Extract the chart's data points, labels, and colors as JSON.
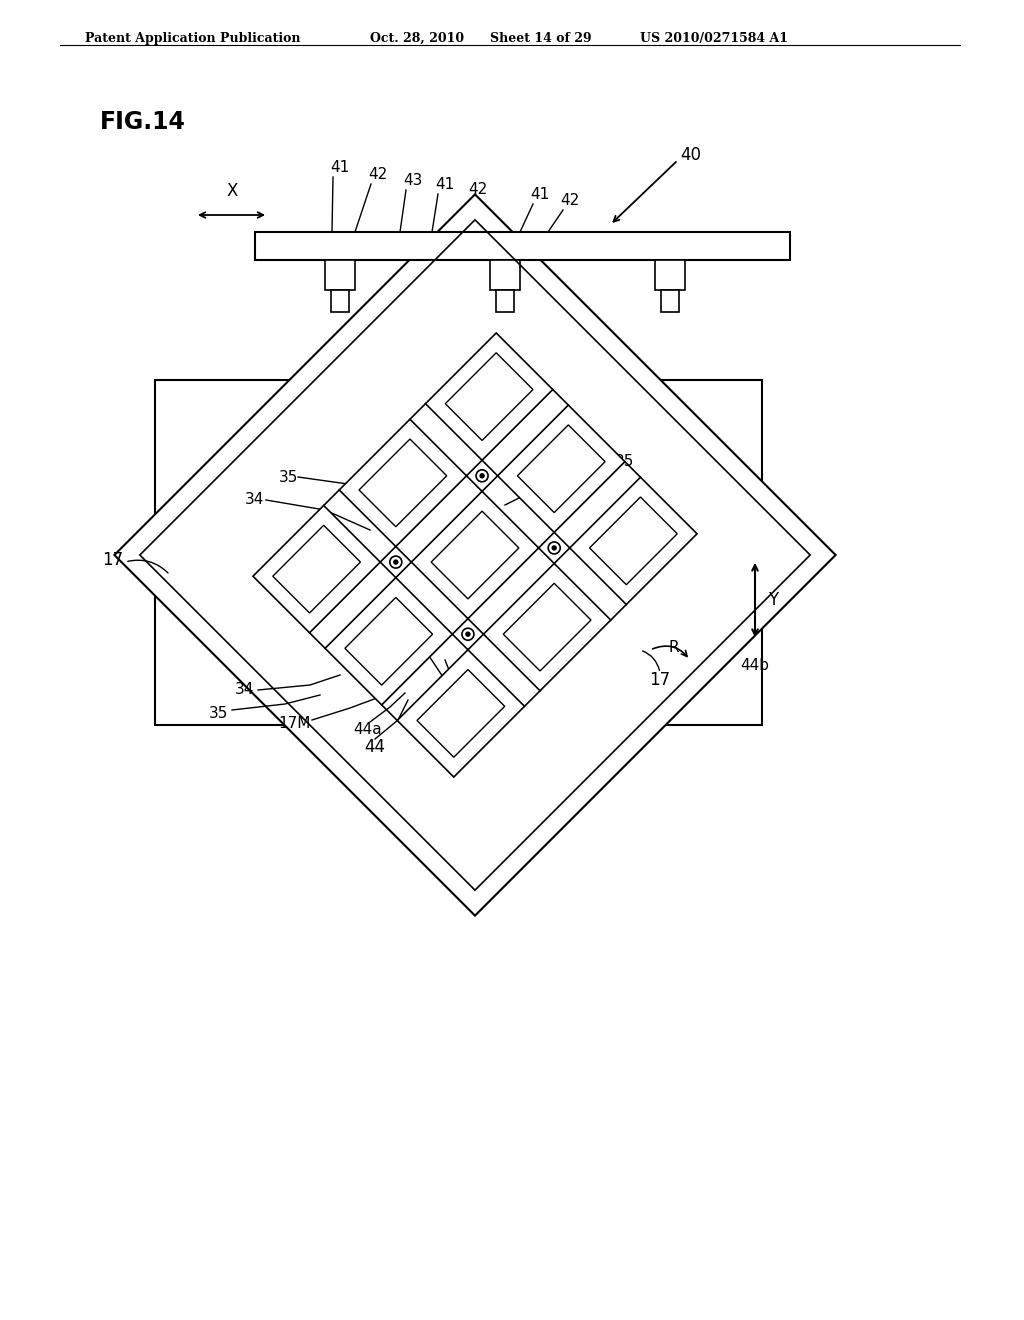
{
  "bg_color": "#ffffff",
  "line_color": "#000000",
  "header_text": "Patent Application Publication",
  "header_date": "Oct. 28, 2010",
  "header_sheet": "Sheet 14 of 29",
  "header_patent": "US 2010/0271584 A1",
  "fig_label": "FIG.14"
}
